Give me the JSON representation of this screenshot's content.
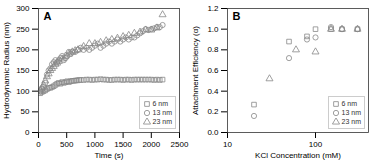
{
  "chart_data": [
    {
      "type": "scatter",
      "title": "A",
      "xlabel": "Time (s)",
      "ylabel": "Hydrodynamic Radius (nm)",
      "xlim": [
        0,
        2500
      ],
      "ylim": [
        0,
        300
      ],
      "xticks": [
        0,
        500,
        1000,
        1500,
        2000,
        2500
      ],
      "yticks": [
        0,
        50,
        100,
        150,
        200,
        250,
        300
      ],
      "legend": "lower right",
      "series": [
        {
          "name": "6 nm",
          "color": "#888888",
          "marker": "square",
          "x": [
            30,
            60,
            90,
            120,
            150,
            180,
            210,
            240,
            270,
            300,
            330,
            360,
            390,
            420,
            450,
            480,
            510,
            540,
            570,
            600,
            630,
            660,
            690,
            720,
            750,
            800,
            850,
            900,
            950,
            1000,
            1050,
            1100,
            1150,
            1200,
            1250,
            1300,
            1350,
            1400,
            1450,
            1500,
            1550,
            1600,
            1650,
            1700,
            1750,
            1800,
            1850,
            1900,
            1950,
            2000,
            2050,
            2100,
            2150,
            2200
          ],
          "values": [
            95,
            98,
            100,
            102,
            105,
            108,
            108,
            110,
            112,
            115,
            118,
            120,
            118,
            122,
            120,
            122,
            124,
            122,
            124,
            125,
            125,
            126,
            126,
            127,
            127,
            127,
            128,
            128,
            127,
            128,
            128,
            129,
            128,
            128,
            127,
            127,
            128,
            128,
            128,
            127,
            128,
            128,
            127,
            128,
            128,
            128,
            128,
            128,
            128,
            128,
            127,
            128,
            127,
            128
          ]
        },
        {
          "name": "13 nm",
          "color": "#888888",
          "marker": "circle",
          "x": [
            30,
            60,
            90,
            120,
            150,
            180,
            210,
            240,
            270,
            300,
            330,
            360,
            390,
            420,
            450,
            480,
            510,
            540,
            570,
            600,
            650,
            700,
            750,
            800,
            850,
            900,
            950,
            1000,
            1050,
            1100,
            1150,
            1200,
            1250,
            1300,
            1350,
            1400,
            1450,
            1500,
            1550,
            1600,
            1650,
            1700,
            1750,
            1800,
            1850,
            1900,
            1950,
            2000,
            2050,
            2100,
            2150,
            2200
          ],
          "values": [
            100,
            105,
            110,
            120,
            140,
            150,
            155,
            165,
            170,
            175,
            170,
            175,
            180,
            185,
            175,
            180,
            185,
            195,
            190,
            195,
            195,
            200,
            205,
            200,
            205,
            200,
            205,
            210,
            215,
            205,
            210,
            215,
            220,
            215,
            220,
            225,
            220,
            225,
            230,
            225,
            230,
            230,
            235,
            240,
            245,
            250,
            248,
            250,
            252,
            255,
            255,
            260
          ]
        },
        {
          "name": "23 nm",
          "color": "#888888",
          "marker": "triangle",
          "x": [
            30,
            60,
            90,
            120,
            150,
            180,
            210,
            240,
            270,
            300,
            330,
            360,
            420,
            480,
            540,
            600,
            650,
            700,
            800,
            900,
            1000,
            1100,
            1200,
            1300,
            1400,
            1500,
            1600,
            1700,
            1800,
            1900,
            2000,
            2100,
            2200
          ],
          "values": [
            102,
            108,
            115,
            125,
            135,
            142,
            150,
            155,
            160,
            165,
            168,
            172,
            178,
            185,
            190,
            195,
            198,
            200,
            208,
            215,
            215,
            218,
            222,
            225,
            228,
            232,
            235,
            240,
            243,
            248,
            248,
            253,
            285
          ]
        }
      ]
    },
    {
      "type": "scatter",
      "title": "B",
      "xlabel": "KCl Concentration (mM)",
      "ylabel": "Attachment Efficiency (α)",
      "log": "x",
      "xlim": [
        10,
        400
      ],
      "ylim": [
        0,
        1.2
      ],
      "xticks": [
        10,
        100
      ],
      "yticks": [
        {
          "value": 0,
          "label": "0.0"
        },
        0.2,
        0.4,
        0.6,
        0.8,
        {
          "value": 1,
          "label": "1.0"
        },
        1.2
      ],
      "legend": "lower right",
      "series": [
        {
          "name": "6 nm",
          "color": "#888888",
          "marker": "square",
          "x": [
            20,
            50,
            80,
            100,
            150,
            200,
            300
          ],
          "values": [
            0.27,
            0.88,
            0.93,
            1.0,
            1.0,
            1.0,
            1.0
          ]
        },
        {
          "name": "13 nm",
          "color": "#888888",
          "marker": "circle",
          "x": [
            20,
            50,
            80,
            100,
            150,
            200,
            300
          ],
          "values": [
            0.16,
            0.72,
            0.9,
            0.92,
            1.02,
            1.0,
            1.0
          ]
        },
        {
          "name": "23 nm",
          "color": "#888888",
          "marker": "triangle",
          "x": [
            30,
            60,
            100,
            150,
            200,
            300
          ],
          "values": [
            0.52,
            0.8,
            0.78,
            1.0,
            1.0,
            1.0
          ]
        }
      ]
    }
  ]
}
